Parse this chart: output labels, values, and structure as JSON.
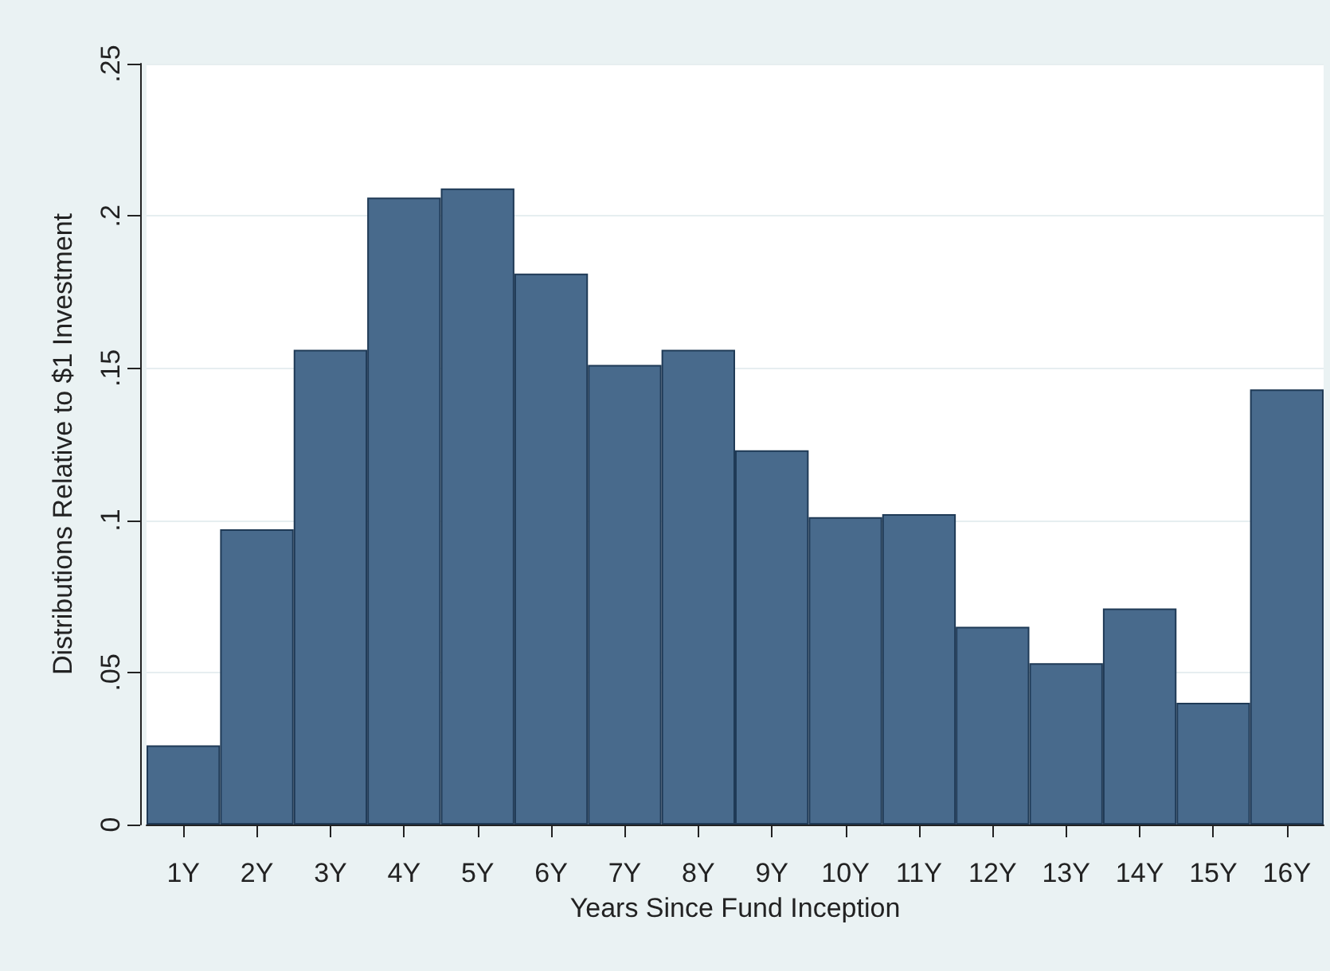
{
  "chart_data": {
    "type": "bar",
    "xlabel": "Years Since Fund Inception",
    "ylabel": "Distributions Relative to $1 Investment",
    "categories": [
      "1Y",
      "2Y",
      "3Y",
      "4Y",
      "5Y",
      "6Y",
      "7Y",
      "8Y",
      "9Y",
      "10Y",
      "11Y",
      "12Y",
      "13Y",
      "14Y",
      "15Y",
      "16Y"
    ],
    "values": [
      0.026,
      0.097,
      0.156,
      0.206,
      0.209,
      0.181,
      0.151,
      0.156,
      0.123,
      0.101,
      0.102,
      0.065,
      0.053,
      0.071,
      0.04,
      0.143
    ],
    "color": "#486a8c",
    "ylim": [
      0,
      0.25
    ],
    "yticks": [
      0,
      {
        "value": 0.05,
        "label": ".05"
      },
      {
        "value": 0.1,
        "label": ".1"
      },
      {
        "value": 0.15,
        "label": ".15"
      },
      {
        "value": 0.2,
        "label": ".2"
      },
      {
        "value": 0.25,
        "label": ".25"
      }
    ],
    "grid": "y"
  }
}
